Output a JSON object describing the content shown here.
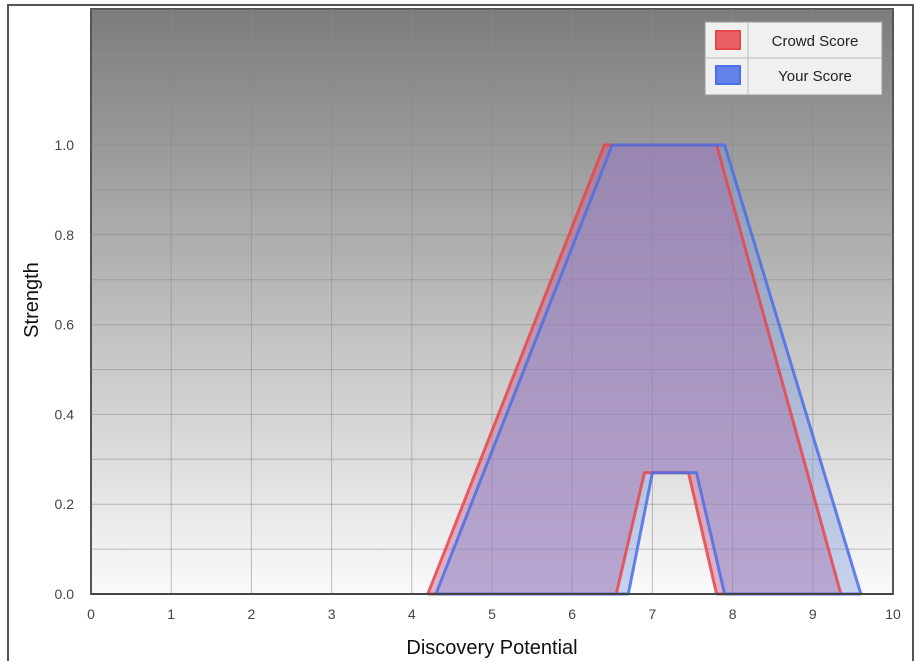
{
  "chart_data": {
    "type": "area",
    "xlabel": "Discovery Potential",
    "ylabel": "Strength",
    "xlim": [
      0,
      10
    ],
    "ylim": [
      0,
      1.0
    ],
    "x_ticks": [
      0,
      1,
      2,
      3,
      4,
      5,
      6,
      7,
      8,
      9,
      10
    ],
    "y_ticks": [
      0.0,
      0.2,
      0.4,
      0.6,
      0.8,
      1.0
    ],
    "y_tick_labels": [
      "0.0",
      "0.2",
      "0.4",
      "0.6",
      "0.8",
      "1.0"
    ],
    "grid": true,
    "legend_position": "top-right",
    "series": [
      {
        "name": "Crowd Score",
        "color": "#e8474c",
        "fill": "rgba(200, 90, 140, 0.45)",
        "outer": [
          [
            4.2,
            0.0
          ],
          [
            6.4,
            1.0
          ],
          [
            7.8,
            1.0
          ],
          [
            9.35,
            0.0
          ]
        ],
        "inner": [
          [
            6.55,
            0.0
          ],
          [
            6.9,
            0.27
          ],
          [
            7.45,
            0.27
          ],
          [
            7.8,
            0.0
          ]
        ]
      },
      {
        "name": "Your Score",
        "color": "#4a6fe8",
        "fill": "rgba(120, 150, 220, 0.4)",
        "outer": [
          [
            4.3,
            0.0
          ],
          [
            6.5,
            1.0
          ],
          [
            7.9,
            1.0
          ],
          [
            9.6,
            0.0
          ]
        ],
        "inner": [
          [
            6.7,
            0.0
          ],
          [
            7.0,
            0.27
          ],
          [
            7.55,
            0.27
          ],
          [
            7.9,
            0.0
          ]
        ]
      }
    ]
  }
}
